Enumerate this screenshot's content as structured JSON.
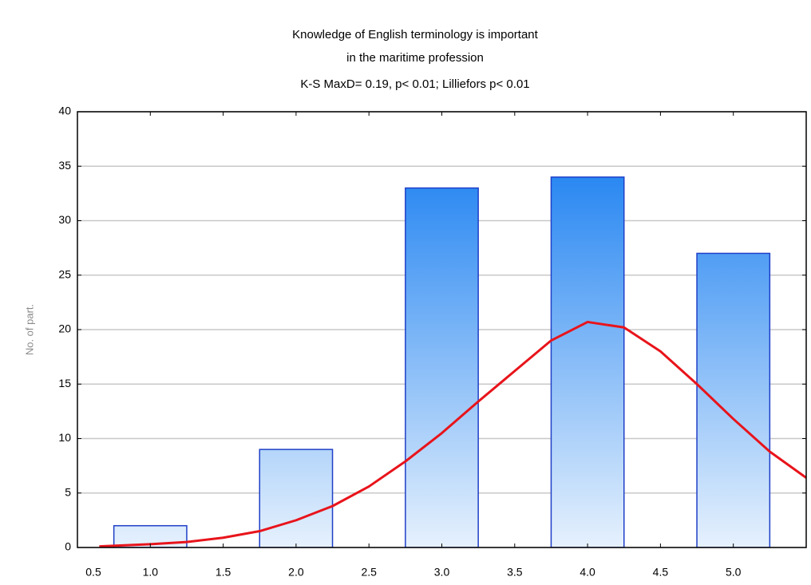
{
  "chart_data": {
    "type": "bar",
    "title": [
      "Knowledge of English terminology is important",
      "in the maritime profession"
    ],
    "subtitle": "K-S MaxD= 0.19, p< 0.01; Lilliefors p< 0.01",
    "ylabel": "No. of part.",
    "x": [
      1,
      2,
      3,
      4,
      5
    ],
    "values": [
      2,
      9,
      33,
      34,
      27
    ],
    "color": "#1f3fc8",
    "xlim": [
      0.5,
      5.5
    ],
    "xticks": [
      {
        "value": 0.5,
        "label": "0.5"
      },
      {
        "value": 1,
        "label": "1.0"
      },
      {
        "value": 1.5,
        "label": "1.5"
      },
      {
        "value": 2,
        "label": "2.0"
      },
      {
        "value": 2.5,
        "label": "2.5"
      },
      {
        "value": 3,
        "label": "3.0"
      },
      {
        "value": 3.5,
        "label": "3.5"
      },
      {
        "value": 4,
        "label": "4.0"
      },
      {
        "value": 4.5,
        "label": "4.5"
      },
      {
        "value": 5,
        "label": "5.0"
      }
    ],
    "ylim": [
      0,
      40
    ],
    "yticks": [
      0,
      5,
      10,
      15,
      20,
      25,
      30,
      35,
      40
    ],
    "grid": true,
    "fit": {
      "type": "line",
      "color": "#e8141b",
      "x": [
        0.65,
        1.0,
        1.25,
        1.5,
        1.75,
        2.0,
        2.25,
        2.5,
        2.75,
        3.0,
        3.25,
        3.5,
        3.75,
        4.0,
        4.25,
        4.5,
        4.75,
        5.0,
        5.25,
        5.5
      ],
      "values": [
        0.1,
        0.3,
        0.5,
        0.9,
        1.5,
        2.5,
        3.8,
        5.6,
        7.9,
        10.5,
        13.4,
        16.2,
        19.0,
        20.7,
        20.2,
        18.0,
        15.0,
        11.8,
        8.8,
        6.4
      ]
    }
  }
}
